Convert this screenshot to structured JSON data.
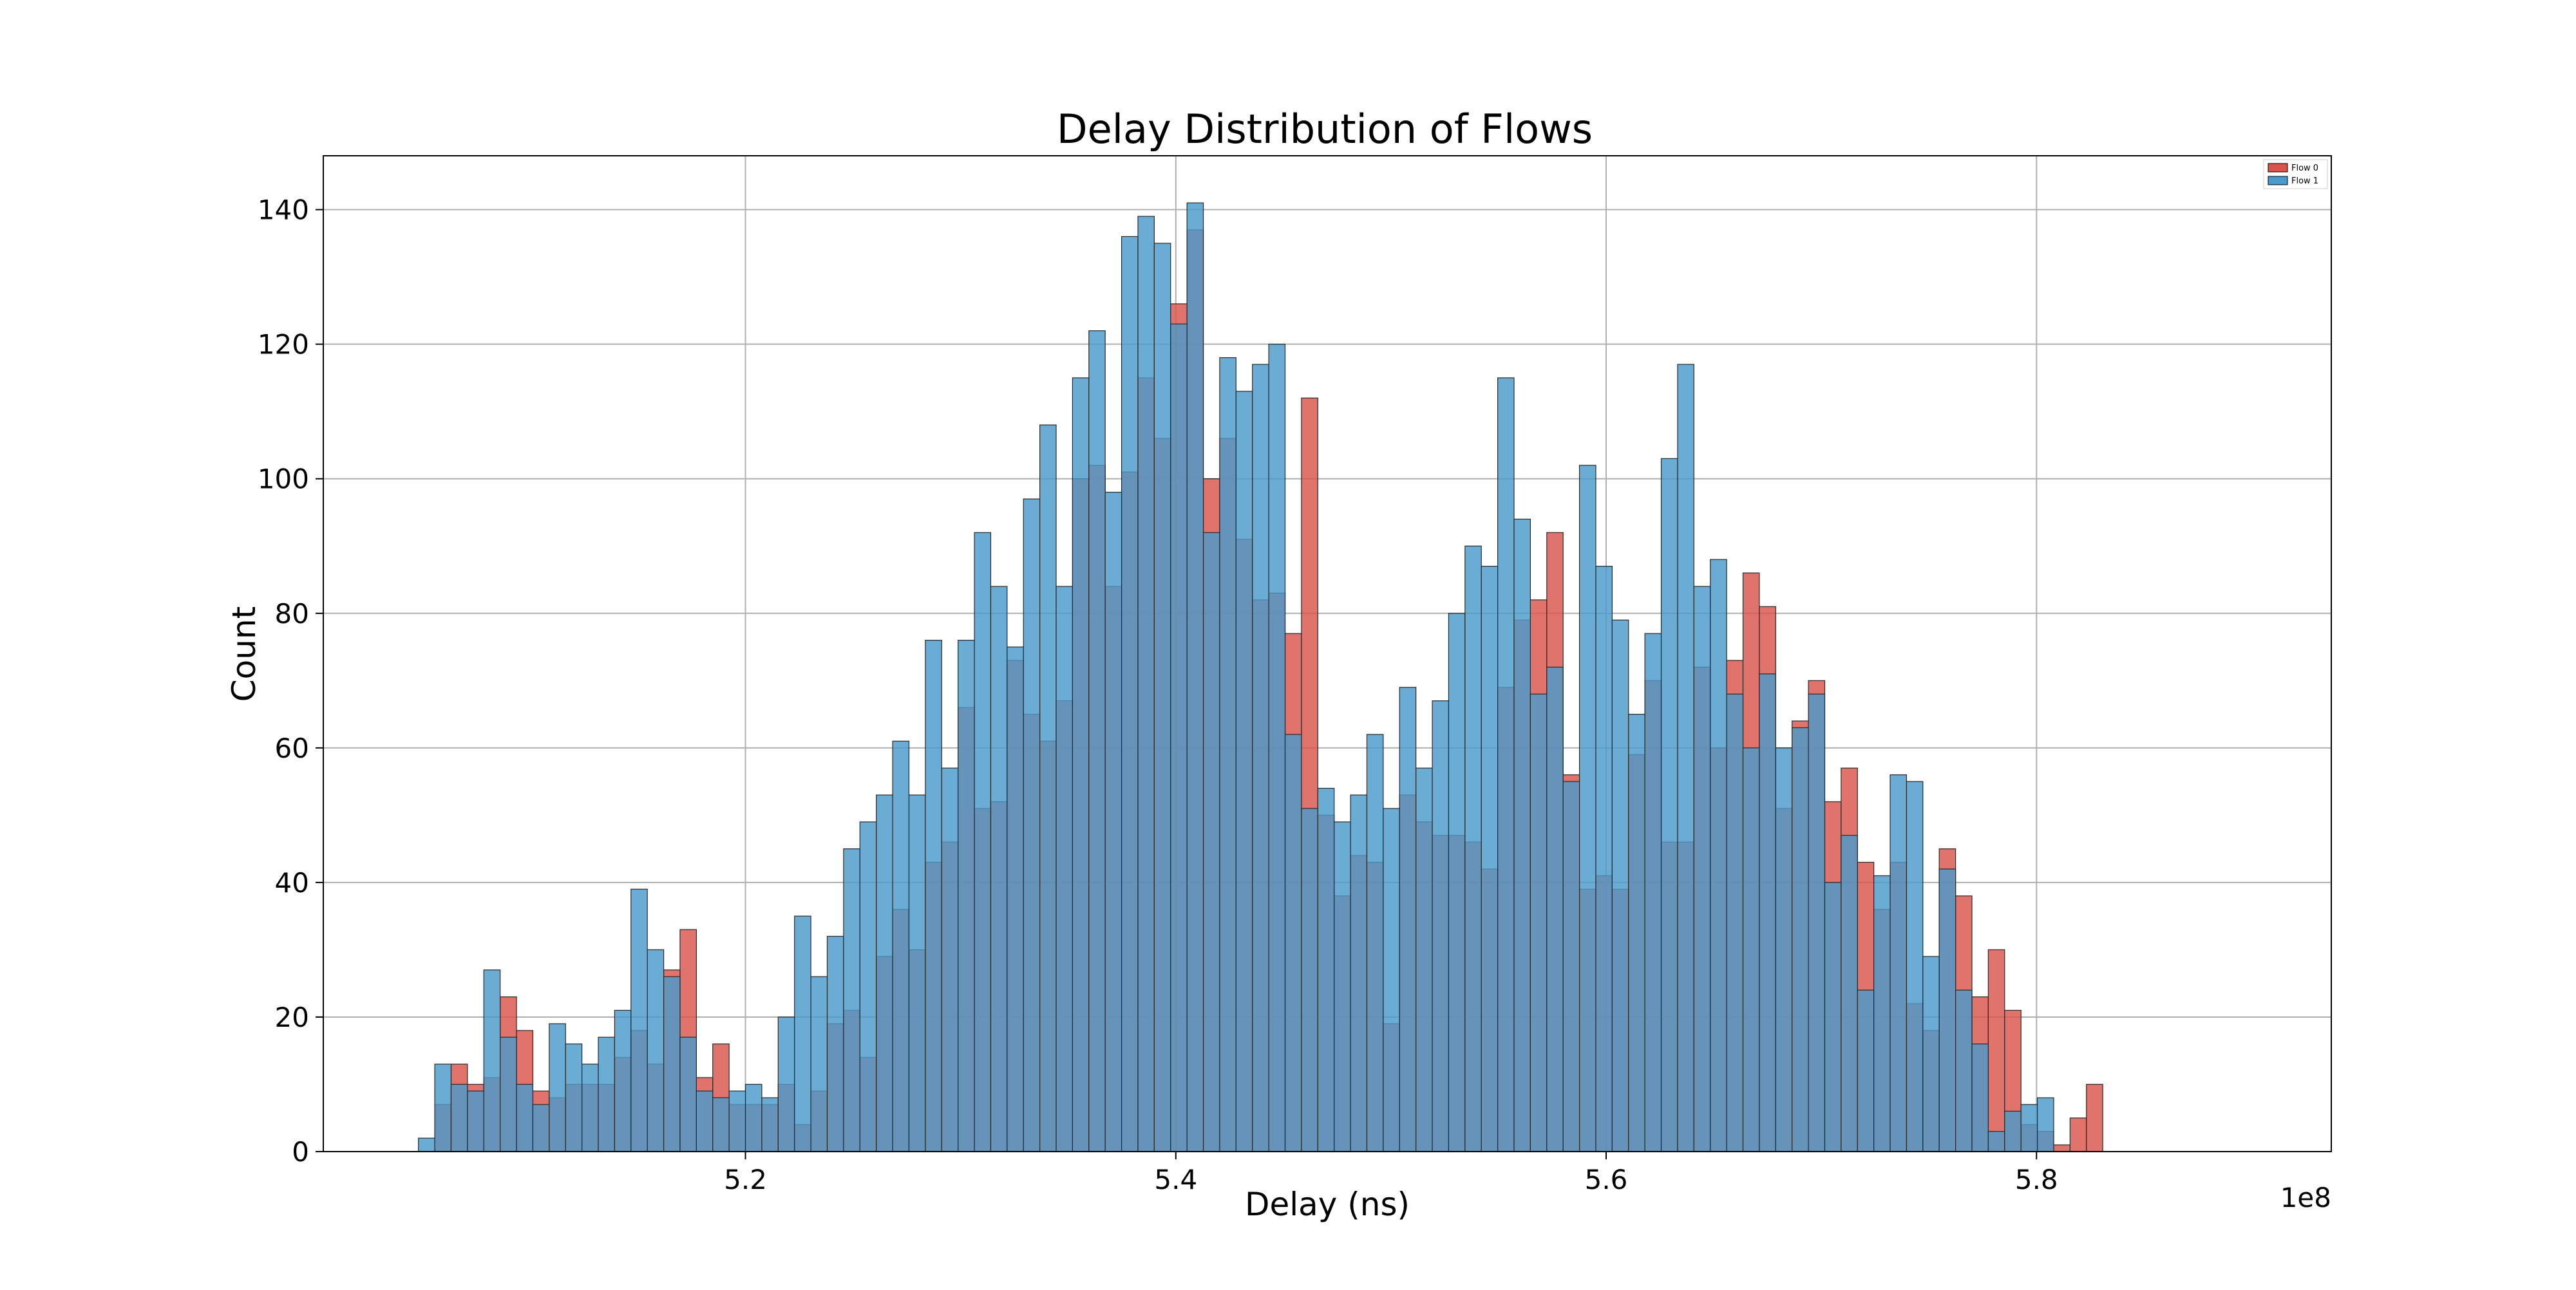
{
  "chart_data": {
    "type": "bar",
    "title": "Delay Distribution of Flows",
    "xlabel": "Delay (ns)",
    "ylabel": "Count",
    "x_offset_label": "1e8",
    "xlim": [
      5.0038,
      5.937
    ],
    "ylim": [
      0,
      148
    ],
    "xticks": [
      5.2,
      5.4,
      5.6,
      5.8
    ],
    "xtick_labels": [
      "5.2",
      "5.4",
      "5.6",
      "5.8"
    ],
    "yticks": [
      0,
      20,
      40,
      60,
      80,
      100,
      120,
      140
    ],
    "ytick_labels": [
      "0",
      "20",
      "40",
      "60",
      "80",
      "100",
      "120",
      "140"
    ],
    "grid": true,
    "legend_position": "top-right",
    "bin_start": 5.048,
    "bin_width": 0.0076,
    "series": [
      {
        "name": "Flow 0",
        "color": "#d9544a",
        "counts": [
          0,
          7,
          13,
          10,
          11,
          23,
          18,
          9,
          8,
          10,
          10,
          10,
          14,
          18,
          13,
          27,
          33,
          11,
          16,
          7,
          7,
          7,
          10,
          4,
          9,
          19,
          21,
          14,
          29,
          36,
          30,
          43,
          46,
          66,
          51,
          52,
          73,
          65,
          61,
          67,
          100,
          102,
          84,
          101,
          115,
          106,
          126,
          137,
          100,
          106,
          91,
          82,
          83,
          77,
          112,
          50,
          38,
          44,
          43,
          19,
          53,
          49,
          47,
          47,
          46,
          42,
          69,
          79,
          82,
          92,
          56,
          39,
          41,
          39,
          59,
          70,
          46,
          46,
          72,
          60,
          73,
          86,
          81,
          51,
          64,
          70,
          52,
          57,
          43,
          36,
          43,
          22,
          18,
          45,
          38,
          23,
          30,
          21,
          4,
          3,
          1,
          5,
          10
        ]
      },
      {
        "name": "Flow 1",
        "color": "#4a9acb",
        "counts": [
          2,
          13,
          10,
          9,
          27,
          17,
          10,
          7,
          19,
          16,
          13,
          17,
          21,
          39,
          30,
          26,
          17,
          9,
          8,
          9,
          10,
          8,
          20,
          35,
          26,
          32,
          45,
          49,
          53,
          61,
          53,
          76,
          57,
          76,
          92,
          84,
          75,
          97,
          108,
          84,
          115,
          122,
          98,
          136,
          139,
          135,
          123,
          141,
          92,
          118,
          113,
          117,
          120,
          62,
          51,
          54,
          49,
          53,
          62,
          51,
          69,
          57,
          67,
          80,
          90,
          87,
          115,
          94,
          68,
          72,
          55,
          102,
          87,
          79,
          65,
          77,
          103,
          117,
          84,
          88,
          68,
          60,
          71,
          60,
          63,
          68,
          40,
          47,
          24,
          41,
          56,
          55,
          29,
          42,
          24,
          16,
          3,
          6,
          7,
          8
        ]
      }
    ]
  }
}
